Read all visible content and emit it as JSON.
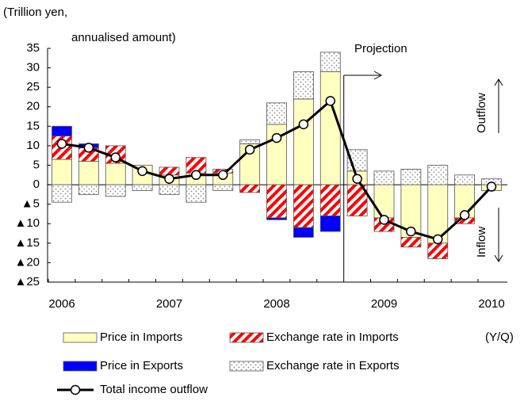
{
  "chart_data": {
    "type": "bar",
    "y_label_lines": [
      "(Trillion yen,",
      "annualised amount)"
    ],
    "x_label": "(Y/Q)",
    "projection_label": "Projection",
    "outflow_label": "Outflow",
    "inflow_label": "Inflow",
    "categories": [
      "2006",
      null,
      null,
      null,
      "2007",
      null,
      null,
      null,
      "2008",
      null,
      null,
      null,
      "2009",
      null,
      null,
      null,
      "2010"
    ],
    "series": [
      {
        "name": "Price in Imports",
        "type": "bar",
        "color": "#ffffc0",
        "pattern": "solid",
        "values": [
          6.5,
          6,
          5.5,
          5,
          2.5,
          3,
          3,
          10.5,
          15.5,
          22,
          29,
          3.5,
          -8.5,
          -13.5,
          -15,
          -8.5,
          -1.5
        ]
      },
      {
        "name": "Exchange rate in Imports",
        "type": "bar",
        "color": "#ff0000",
        "pattern": "stripes",
        "values": [
          6,
          3.5,
          4.5,
          0,
          2,
          4,
          1,
          -2,
          -8.5,
          -11,
          -8,
          -8,
          -3.5,
          -2.5,
          -4,
          -1.5,
          0
        ]
      },
      {
        "name": "Price in Exports",
        "type": "bar",
        "color": "#0000ff",
        "pattern": "solid",
        "values": [
          2.5,
          1,
          0,
          0,
          0,
          0,
          0,
          0,
          -0.5,
          -2.5,
          -4,
          0,
          0,
          0,
          0,
          0,
          0
        ]
      },
      {
        "name": "Exchange rate in Exports",
        "type": "bar",
        "color": "#b0b0b0",
        "pattern": "dots",
        "values": [
          -4.5,
          -2.5,
          -3,
          -1.5,
          -2.5,
          -4.5,
          -1.5,
          1,
          5.5,
          7,
          5,
          5.5,
          3.5,
          4,
          5,
          2.5,
          1.5
        ]
      },
      {
        "name": "Total income outflow",
        "type": "line",
        "color": "#000000",
        "values": [
          10.5,
          9.5,
          7,
          3.5,
          1.5,
          2.5,
          2.5,
          9,
          12,
          15.5,
          21.5,
          1.5,
          -9,
          -12,
          -14,
          -7.8,
          -0.5
        ]
      }
    ],
    "ylim": [
      -25,
      35
    ],
    "yticks": [
      {
        "value": -25,
        "label": "▲25"
      },
      {
        "value": -20,
        "label": "▲20"
      },
      {
        "value": -15,
        "label": "▲15"
      },
      {
        "value": -10,
        "label": "▲10"
      },
      {
        "value": -5,
        "label": "▲5"
      },
      0,
      5,
      10,
      15,
      20,
      25,
      30,
      35
    ],
    "grid": false
  }
}
